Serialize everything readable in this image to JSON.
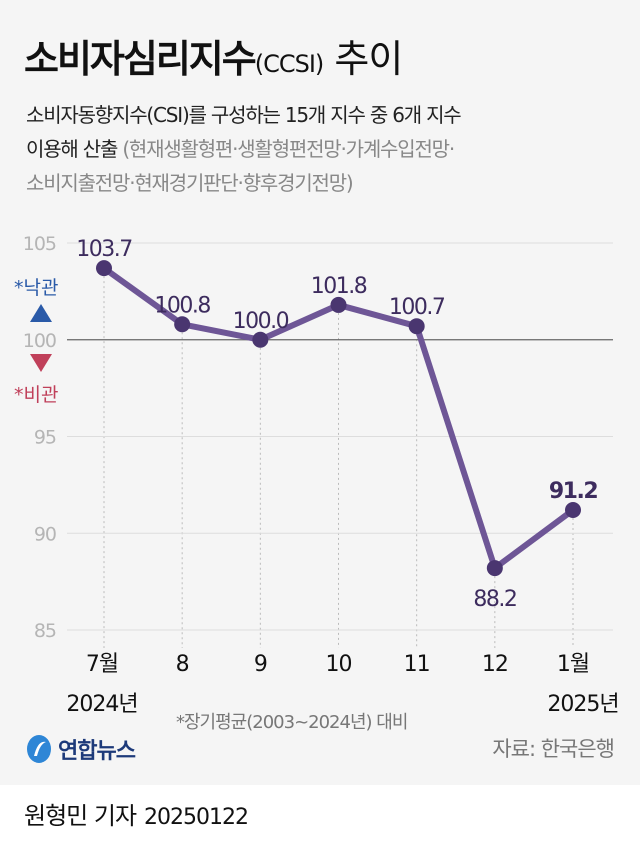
{
  "header": {
    "title_main": "소비자심리지수",
    "title_sub": "(CCSI)",
    "title_tail": " 추이",
    "desc_line1": "소비자동향지수(CSI)를 구성하는 15개 지수 중 6개 지수",
    "desc_line2_dark": "이용해 산출 ",
    "desc_line2_gray": "(현재생활형편·생활형편전망·가계수입전망·",
    "desc_line3_gray": "소비지출전망·현재경기판단·향후경기전망)"
  },
  "chart_data": {
    "type": "line",
    "categories": [
      "7월",
      "8",
      "9",
      "10",
      "11",
      "12",
      "1월"
    ],
    "year_labels": {
      "first": "2024년",
      "last": "2025년"
    },
    "values": [
      103.7,
      100.8,
      100.0,
      101.8,
      100.7,
      88.2,
      91.2
    ],
    "value_labels": [
      "103.7",
      "100.8",
      "100.0",
      "101.8",
      "100.7",
      "88.2",
      "91.2"
    ],
    "yticks": [
      105,
      100,
      95,
      90,
      85
    ],
    "ylim": [
      85,
      105
    ],
    "reference_line": 100,
    "optimism_label": "*낙관",
    "pessimism_label": "*비관",
    "grid": true,
    "colors": {
      "line": "#6e5696",
      "marker": "#4a3670",
      "label": "#3d2c5e",
      "optimism": "#2a5aa8",
      "pessimism": "#c0405a",
      "tick": "#b5b5b5"
    }
  },
  "footer": {
    "note": "*장기평균(2003~2024년) 대비",
    "logo_text": "연합뉴스",
    "source": "자료: 한국은행",
    "byline": "원형민 기자",
    "date": "20250122"
  }
}
